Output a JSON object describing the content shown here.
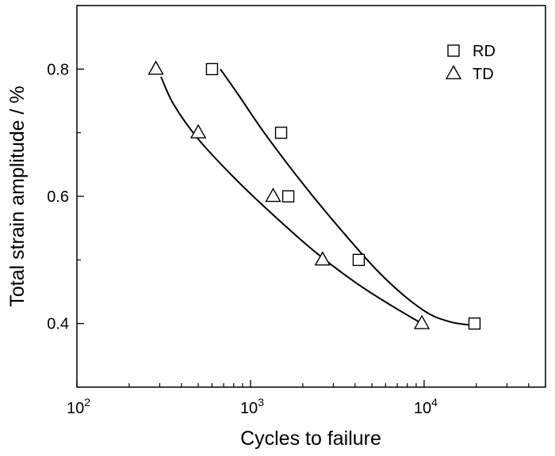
{
  "chart_data": {
    "type": "scatter",
    "xlabel": "Cycles to failure",
    "ylabel": "Total strain amplitude / %",
    "xscale": "log",
    "xlim": [
      100,
      50000
    ],
    "ylim": [
      0.3,
      0.9
    ],
    "x_ticks": [
      {
        "value": 100,
        "base": "10",
        "exp": "2"
      },
      {
        "value": 1000,
        "base": "10",
        "exp": "3"
      },
      {
        "value": 10000,
        "base": "10",
        "exp": "4"
      }
    ],
    "y_ticks": [
      {
        "value": 0.4,
        "label": "0.4"
      },
      {
        "value": 0.6,
        "label": "0.6"
      },
      {
        "value": 0.8,
        "label": "0.8"
      }
    ],
    "grid": false,
    "legend_position": "top-right",
    "series": [
      {
        "name": "RD",
        "marker": "square",
        "points": [
          {
            "x": 600,
            "y": 0.8
          },
          {
            "x": 1500,
            "y": 0.7
          },
          {
            "x": 1650,
            "y": 0.6
          },
          {
            "x": 4200,
            "y": 0.5
          },
          {
            "x": 19500,
            "y": 0.4
          }
        ],
        "fit_curve": [
          {
            "x": 670,
            "y": 0.8
          },
          {
            "x": 850,
            "y": 0.76
          },
          {
            "x": 1200,
            "y": 0.7
          },
          {
            "x": 2000,
            "y": 0.62
          },
          {
            "x": 3500,
            "y": 0.54
          },
          {
            "x": 6000,
            "y": 0.47
          },
          {
            "x": 10000,
            "y": 0.42
          },
          {
            "x": 14000,
            "y": 0.403
          },
          {
            "x": 18000,
            "y": 0.398
          }
        ]
      },
      {
        "name": "TD",
        "marker": "triangle",
        "points": [
          {
            "x": 285,
            "y": 0.8
          },
          {
            "x": 500,
            "y": 0.7
          },
          {
            "x": 1350,
            "y": 0.6
          },
          {
            "x": 2600,
            "y": 0.5
          },
          {
            "x": 9700,
            "y": 0.4
          }
        ],
        "fit_curve": [
          {
            "x": 305,
            "y": 0.788
          },
          {
            "x": 360,
            "y": 0.745
          },
          {
            "x": 500,
            "y": 0.69
          },
          {
            "x": 800,
            "y": 0.63
          },
          {
            "x": 1300,
            "y": 0.575
          },
          {
            "x": 2300,
            "y": 0.515
          },
          {
            "x": 4000,
            "y": 0.465
          },
          {
            "x": 6500,
            "y": 0.428
          },
          {
            "x": 9700,
            "y": 0.4
          }
        ]
      }
    ]
  }
}
